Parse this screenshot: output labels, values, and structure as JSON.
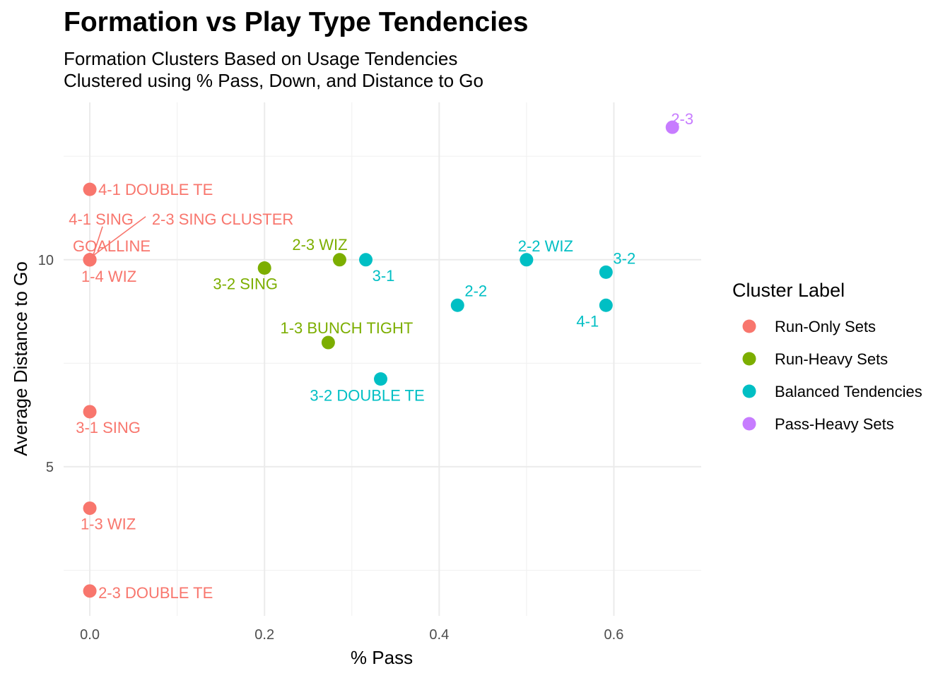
{
  "chart_data": {
    "type": "scatter",
    "title": "Formation vs Play Type Tendencies",
    "subtitle": [
      "Formation Clusters Based on Usage Tendencies",
      "Clustered using % Pass, Down, and Distance to Go"
    ],
    "xlabel": "% Pass",
    "ylabel": "Average Distance to Go",
    "xlim": [
      -0.03,
      0.7
    ],
    "ylim": [
      1.4,
      13.8
    ],
    "x_ticks": [
      0.0,
      0.2,
      0.4,
      0.6
    ],
    "x_tick_labels": [
      "0.0",
      "0.2",
      "0.4",
      "0.6"
    ],
    "y_ticks": [
      5,
      10
    ],
    "y_tick_labels": [
      "5",
      "10"
    ],
    "grid": true,
    "legend": {
      "title": "Cluster Label",
      "placement": "right"
    },
    "series": [
      {
        "name": "Run-Only Sets",
        "color": "#F8766D",
        "points": [
          {
            "label": "4-1 DOUBLE TE",
            "x": 0.0,
            "y": 11.7
          },
          {
            "label": "4-1 SING",
            "x": 0.0,
            "y": 10.0
          },
          {
            "label": "2-3 SING CLUSTER",
            "x": 0.0,
            "y": 10.0
          },
          {
            "label": "GOALLINE",
            "x": 0.0,
            "y": 10.0
          },
          {
            "label": "1-4 WIZ",
            "x": 0.0,
            "y": 10.0
          },
          {
            "label": "3-1 SING",
            "x": 0.0,
            "y": 6.33
          },
          {
            "label": "1-3 WIZ",
            "x": 0.0,
            "y": 4.0
          },
          {
            "label": "2-3 DOUBLE TE",
            "x": 0.0,
            "y": 2.0
          }
        ]
      },
      {
        "name": "Run-Heavy Sets",
        "color": "#7CAE00",
        "points": [
          {
            "label": "2-3 WIZ",
            "x": 0.286,
            "y": 10.0
          },
          {
            "label": "3-2 SING",
            "x": 0.2,
            "y": 9.8
          },
          {
            "label": "1-3 BUNCH TIGHT",
            "x": 0.273,
            "y": 8.0
          }
        ]
      },
      {
        "name": "Balanced Tendencies",
        "color": "#00BFC4",
        "points": [
          {
            "label": "3-1",
            "x": 0.316,
            "y": 10.0
          },
          {
            "label": "2-2 WIZ",
            "x": 0.5,
            "y": 10.0
          },
          {
            "label": "3-2",
            "x": 0.591,
            "y": 9.7
          },
          {
            "label": "2-2",
            "x": 0.421,
            "y": 8.9
          },
          {
            "label": "4-1",
            "x": 0.591,
            "y": 8.9
          },
          {
            "label": "3-2 DOUBLE TE",
            "x": 0.333,
            "y": 7.12
          }
        ]
      },
      {
        "name": "Pass-Heavy Sets",
        "color": "#C77CFF",
        "points": [
          {
            "label": "2-3",
            "x": 0.667,
            "y": 13.2
          }
        ]
      }
    ]
  }
}
